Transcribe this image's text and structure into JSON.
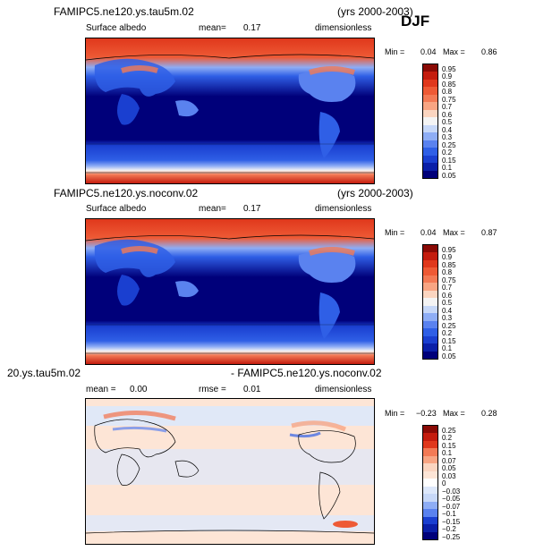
{
  "season": "DJF",
  "panels": [
    {
      "header_left": "FAMIPC5.ne120.ys.tau5m.02",
      "header_right": "(yrs 2000-2003)",
      "field": "Surface albedo",
      "mean_label": "mean=",
      "mean_value": "0.17",
      "units": "dimensionless",
      "min_label": "Min =",
      "min_value": "0.04",
      "max_label": "Max =",
      "max_value": "0.86",
      "colorbar": [
        "0.95",
        "0.9",
        "0.85",
        "0.8",
        "0.75",
        "0.7",
        "0.6",
        "0.5",
        "0.4",
        "0.3",
        "0.25",
        "0.2",
        "0.15",
        "0.1",
        "0.05"
      ]
    },
    {
      "header_left": "FAMIPC5.ne120.ys.noconv.02",
      "header_right": "(yrs 2000-2003)",
      "field": "Surface albedo",
      "mean_label": "mean=",
      "mean_value": "0.17",
      "units": "dimensionless",
      "min_label": "Min =",
      "min_value": "0.04",
      "max_label": "Max =",
      "max_value": "0.87",
      "colorbar": [
        "0.95",
        "0.9",
        "0.85",
        "0.8",
        "0.75",
        "0.7",
        "0.6",
        "0.5",
        "0.4",
        "0.3",
        "0.25",
        "0.2",
        "0.15",
        "0.1",
        "0.05"
      ]
    },
    {
      "header_left": "20.ys.tau5m.02",
      "header_right": "- FAMIPC5.ne120.ys.noconv.02",
      "mean_label": "mean =",
      "mean_value": "0.00",
      "rmse_label": "rmse =",
      "rmse_value": "0.01",
      "units": "dimensionless",
      "min_label": "Min =",
      "min_value": "−0.23",
      "max_label": "Max =",
      "max_value": "0.28",
      "colorbar": [
        "0.25",
        "0.2",
        "0.15",
        "0.1",
        "0.07",
        "0.05",
        "0.03",
        "0",
        "−0.03",
        "−0.05",
        "−0.07",
        "−0.1",
        "−0.15",
        "−0.2",
        "−0.25"
      ]
    }
  ],
  "chart_data": [
    {
      "type": "heatmap",
      "title": "FAMIPC5.ne120.ys.tau5m.02",
      "subtitle": "Surface albedo",
      "mean": 0.17,
      "min": 0.04,
      "max": 0.86,
      "levels": [
        0.05,
        0.1,
        0.15,
        0.2,
        0.25,
        0.3,
        0.4,
        0.5,
        0.6,
        0.7,
        0.75,
        0.8,
        0.85,
        0.9,
        0.95
      ]
    },
    {
      "type": "heatmap",
      "title": "FAMIPC5.ne120.ys.noconv.02",
      "subtitle": "Surface albedo",
      "mean": 0.17,
      "min": 0.04,
      "max": 0.87,
      "levels": [
        0.05,
        0.1,
        0.15,
        0.2,
        0.25,
        0.3,
        0.4,
        0.5,
        0.6,
        0.7,
        0.75,
        0.8,
        0.85,
        0.9,
        0.95
      ]
    },
    {
      "type": "heatmap",
      "mean": 0.0,
      "rmse": 0.01,
      "min": -0.23,
      "max": 0.28,
      "levels": [
        -0.25,
        -0.2,
        -0.15,
        -0.1,
        -0.07,
        -0.05,
        -0.03,
        0,
        0.03,
        0.05,
        0.07,
        0.1,
        0.15,
        0.2,
        0.25
      ]
    }
  ],
  "colors": {
    "albedo_scale": [
      "#00007a",
      "#0a1fa8",
      "#1a3fd0",
      "#2f5fe6",
      "#5a82ef",
      "#8eadf5",
      "#c7d8f8",
      "#f4f4f4",
      "#fbd5c0",
      "#f8a583",
      "#f37a55",
      "#ee5a35",
      "#e0381c",
      "#c41c0e",
      "#8a0a05"
    ],
    "diff_scale": [
      "#00007a",
      "#0a1fa8",
      "#1a3fd0",
      "#2f5fe6",
      "#5a82ef",
      "#8eadf5",
      "#c7d8f8",
      "#dde8fb",
      "#fde5d6",
      "#fbd5c0",
      "#f8a583",
      "#f37a55",
      "#e0381c",
      "#c41c0e",
      "#8a0a05"
    ]
  }
}
